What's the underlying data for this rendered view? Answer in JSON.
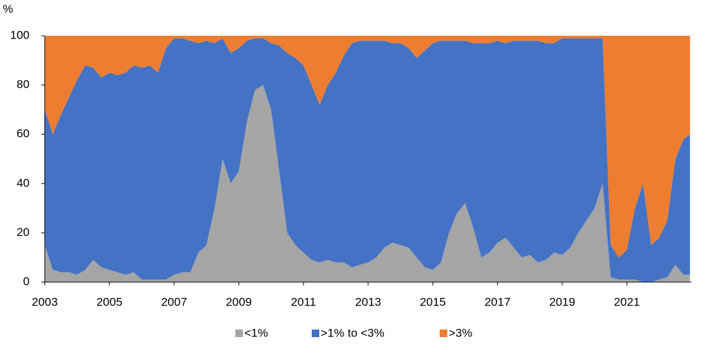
{
  "chart_data": {
    "type": "stacked-area",
    "y_unit": "%",
    "x": [
      2003.0,
      2003.25,
      2003.5,
      2003.75,
      2004.0,
      2004.25,
      2004.5,
      2004.75,
      2005.0,
      2005.25,
      2005.5,
      2005.75,
      2006.0,
      2006.25,
      2006.5,
      2006.75,
      2007.0,
      2007.25,
      2007.5,
      2007.75,
      2008.0,
      2008.25,
      2008.5,
      2008.75,
      2009.0,
      2009.25,
      2009.5,
      2009.75,
      2010.0,
      2010.25,
      2010.5,
      2010.75,
      2011.0,
      2011.25,
      2011.5,
      2011.75,
      2012.0,
      2012.25,
      2012.5,
      2012.75,
      2013.0,
      2013.25,
      2013.5,
      2013.75,
      2014.0,
      2014.25,
      2014.5,
      2014.75,
      2015.0,
      2015.25,
      2015.5,
      2015.75,
      2016.0,
      2016.25,
      2016.5,
      2016.75,
      2017.0,
      2017.25,
      2017.5,
      2017.75,
      2018.0,
      2018.25,
      2018.5,
      2018.75,
      2019.0,
      2019.25,
      2019.5,
      2019.75,
      2020.0,
      2020.25,
      2020.5,
      2020.75,
      2021.0,
      2021.25,
      2021.5,
      2021.75,
      2022.0,
      2022.25,
      2022.5,
      2022.75,
      2022.95
    ],
    "series": [
      {
        "name": "<1%",
        "color": "#a5a5a5",
        "values": [
          15,
          5,
          4,
          4,
          3,
          5,
          9,
          6,
          5,
          4,
          3,
          4,
          1,
          1,
          1,
          1,
          3,
          4,
          4,
          12,
          15,
          30,
          50,
          40,
          45,
          65,
          78,
          80,
          70,
          45,
          20,
          15,
          12,
          9,
          8,
          9,
          8,
          8,
          6,
          7,
          8,
          10,
          14,
          16,
          15,
          14,
          10,
          6,
          5,
          8,
          20,
          28,
          32,
          22,
          10,
          12,
          16,
          18,
          14,
          10,
          11,
          8,
          9,
          12,
          11,
          14,
          20,
          25,
          30,
          40,
          2,
          1,
          1,
          1,
          0,
          0,
          1,
          2,
          7,
          3,
          3
        ]
      },
      {
        "name": ">1% to <3%",
        "color": "#4472c4",
        "values": [
          55,
          55,
          64,
          71,
          79,
          83,
          78,
          77,
          80,
          80,
          82,
          84,
          86,
          87,
          84,
          94,
          96,
          95,
          94,
          85,
          83,
          67,
          49,
          53,
          50,
          33,
          21,
          19,
          27,
          51,
          73,
          76,
          76,
          71,
          64,
          71,
          77,
          84,
          91,
          91,
          90,
          88,
          84,
          81,
          82,
          81,
          81,
          88,
          92,
          90,
          78,
          70,
          66,
          75,
          87,
          85,
          82,
          79,
          84,
          88,
          87,
          90,
          88,
          85,
          88,
          85,
          79,
          74,
          69,
          59,
          13,
          9,
          12,
          29,
          40,
          15,
          17,
          23,
          43,
          55,
          57
        ]
      },
      {
        "name": ">3%",
        "color": "#ed7d31",
        "values": [
          30,
          40,
          32,
          25,
          18,
          12,
          13,
          17,
          15,
          16,
          15,
          12,
          13,
          12,
          15,
          5,
          1,
          1,
          2,
          3,
          2,
          3,
          1,
          7,
          5,
          2,
          1,
          1,
          3,
          4,
          7,
          9,
          12,
          20,
          28,
          20,
          15,
          8,
          3,
          2,
          2,
          2,
          2,
          3,
          3,
          5,
          9,
          6,
          3,
          2,
          2,
          2,
          2,
          3,
          3,
          3,
          2,
          3,
          2,
          2,
          2,
          2,
          3,
          3,
          1,
          1,
          1,
          1,
          1,
          1,
          85,
          90,
          87,
          70,
          60,
          85,
          82,
          75,
          50,
          42,
          40
        ]
      }
    ],
    "xlim": [
      2003,
      2023
    ],
    "xticks": [
      2003,
      2005,
      2007,
      2009,
      2011,
      2013,
      2015,
      2017,
      2019,
      2021
    ],
    "ylim": [
      0,
      100
    ],
    "yticks": [
      0,
      20,
      40,
      60,
      80,
      100
    ],
    "legend": "bottom"
  }
}
